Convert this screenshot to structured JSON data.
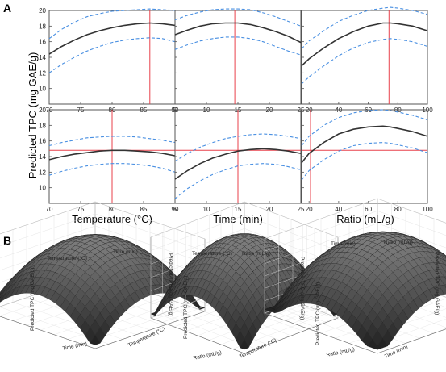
{
  "panels": {
    "a_label": "A",
    "b_label": "B"
  },
  "panel_a": {
    "ylabel": "Predicted TPC (mg GAE/g)",
    "xlabels": [
      "Temperature (°C)",
      "Time (min)",
      "Ratio (mL/g)"
    ],
    "yticks": [
      10,
      12,
      14,
      16,
      18,
      20
    ],
    "xticks": [
      [
        "70",
        "75",
        "80",
        "85",
        "90"
      ],
      [
        "5",
        "10",
        "15",
        "20",
        "25"
      ],
      [
        "20",
        "40",
        "60",
        "80",
        "100"
      ]
    ]
  },
  "panel_b": {
    "surfaces": [
      {
        "top_left_label": "Temperature (°C)",
        "top_right_label": "Time (min)",
        "bottom_left_label": "Time (min)",
        "bottom_right_label": "Temperature (°C)",
        "zlabel": "Predicted TPC (mg GAE/g)"
      },
      {
        "top_left_label": "Temperature (°C)",
        "top_right_label": "Ratio (mL/g)",
        "bottom_left_label": "Ratio (mL/g)",
        "bottom_right_label": "Temperature (°C)",
        "zlabel": "Predicted TPC (mg GAE/g)"
      },
      {
        "top_left_label": "Time (min)",
        "top_right_label": "Ratio (mL/g)",
        "bottom_left_label": "Ratio (mL/g)",
        "bottom_right_label": "Time (min)",
        "zlabel": "Predicted TPC (mg GAE/g)"
      }
    ]
  },
  "colors": {
    "fit": "#333333",
    "ci": "#4a90e2",
    "ref": "#e8414b",
    "surface": "#2a2a2a"
  },
  "chart_data": [
    {
      "type": "line",
      "xlabel": "Temperature (°C)",
      "ylabel": "Predicted TPC (mg GAE/g)",
      "xlim": [
        70,
        90
      ],
      "ylim": [
        8,
        20
      ],
      "x": [
        70,
        72,
        74,
        76,
        78,
        80,
        82,
        84,
        86,
        88,
        90
      ],
      "series": [
        {
          "values": [
            14.4,
            15.4,
            16.2,
            16.9,
            17.4,
            17.8,
            18.1,
            18.3,
            18.4,
            18.3,
            18.1
          ]
        }
      ],
      "ci_lower": [
        12.0,
        13.1,
        14.0,
        14.8,
        15.4,
        15.9,
        16.2,
        16.4,
        16.5,
        16.4,
        16.0
      ],
      "ci_upper": [
        16.4,
        17.6,
        18.5,
        19.2,
        19.6,
        19.9,
        20.0,
        20.1,
        20.2,
        20.1,
        20.0
      ],
      "ref_x": 86,
      "ref_y": 18.4
    },
    {
      "type": "line",
      "xlabel": "Time (min)",
      "ylabel": "Predicted TPC (mg GAE/g)",
      "xlim": [
        5,
        25
      ],
      "ylim": [
        8,
        20
      ],
      "x": [
        5,
        7,
        9,
        11,
        13,
        15,
        17,
        19,
        21,
        23,
        25
      ],
      "series": [
        {
          "values": [
            16.9,
            17.5,
            18.0,
            18.3,
            18.4,
            18.4,
            18.2,
            17.8,
            17.3,
            16.7,
            15.9
          ]
        }
      ],
      "ci_lower": [
        15.0,
        15.6,
        16.1,
        16.4,
        16.6,
        16.6,
        16.4,
        16.0,
        15.4,
        14.8,
        14.3
      ],
      "ci_upper": [
        18.8,
        19.4,
        19.8,
        20.1,
        20.2,
        20.2,
        20.1,
        19.7,
        19.2,
        18.6,
        18.0
      ],
      "ref_x": 14.5,
      "ref_y": 18.4
    },
    {
      "type": "line",
      "xlabel": "Ratio (mL/g)",
      "ylabel": "Predicted TPC (mg GAE/g)",
      "xlim": [
        15,
        100
      ],
      "ylim": [
        8,
        20
      ],
      "x": [
        15,
        20,
        30,
        40,
        50,
        60,
        70,
        75,
        80,
        90,
        100
      ],
      "series": [
        {
          "values": [
            12.9,
            13.8,
            15.2,
            16.4,
            17.3,
            18.0,
            18.4,
            18.4,
            18.3,
            18.0,
            17.4
          ]
        }
      ],
      "ci_lower": [
        10.6,
        11.5,
        12.9,
        14.2,
        15.2,
        15.9,
        16.3,
        16.4,
        16.3,
        16.0,
        15.4
      ],
      "ci_upper": [
        15.1,
        16.1,
        17.4,
        18.6,
        19.4,
        20.0,
        20.3,
        20.4,
        20.3,
        20.0,
        19.5
      ],
      "ref_x": 74,
      "ref_y": 18.4
    },
    {
      "type": "line",
      "xlabel": "Temperature (°C)",
      "ylabel": "Predicted TPC (mg GAE/g)",
      "xlim": [
        70,
        90
      ],
      "ylim": [
        8,
        20
      ],
      "x": [
        70,
        72,
        74,
        76,
        78,
        80,
        82,
        84,
        86,
        88,
        90
      ],
      "series": [
        {
          "values": [
            13.6,
            14.0,
            14.3,
            14.5,
            14.7,
            14.8,
            14.8,
            14.7,
            14.6,
            14.4,
            14.1
          ]
        }
      ],
      "ci_lower": [
        11.6,
        12.1,
        12.5,
        12.8,
        13.0,
        13.1,
        13.1,
        13.0,
        12.8,
        12.5,
        12.0
      ],
      "ci_upper": [
        15.4,
        15.8,
        16.1,
        16.4,
        16.5,
        16.6,
        16.6,
        16.5,
        16.3,
        16.1,
        15.8
      ],
      "ref_x": 80,
      "ref_y": 14.8
    },
    {
      "type": "line",
      "xlabel": "Time (min)",
      "ylabel": "Predicted TPC (mg GAE/g)",
      "xlim": [
        5,
        25
      ],
      "ylim": [
        8,
        20
      ],
      "x": [
        5,
        7,
        9,
        11,
        13,
        15,
        17,
        19,
        21,
        23,
        25
      ],
      "series": [
        {
          "values": [
            11.1,
            12.2,
            13.1,
            13.8,
            14.3,
            14.7,
            14.9,
            15.0,
            14.9,
            14.7,
            14.4
          ]
        }
      ],
      "ci_lower": [
        8.6,
        9.9,
        10.9,
        11.7,
        12.3,
        12.8,
        13.0,
        13.1,
        13.0,
        12.7,
        12.3
      ],
      "ci_upper": [
        13.4,
        14.4,
        15.2,
        15.8,
        16.3,
        16.6,
        16.8,
        16.9,
        16.8,
        16.6,
        16.3
      ],
      "ref_x": 15,
      "ref_y": 14.8
    },
    {
      "type": "line",
      "xlabel": "Ratio (mL/g)",
      "ylabel": "Predicted TPC (mg GAE/g)",
      "xlim": [
        15,
        100
      ],
      "ylim": [
        8,
        20
      ],
      "x": [
        15,
        20,
        30,
        40,
        50,
        60,
        70,
        75,
        80,
        90,
        100
      ],
      "series": [
        {
          "values": [
            13.2,
            14.4,
            15.8,
            16.9,
            17.5,
            17.8,
            17.9,
            17.8,
            17.6,
            17.2,
            16.6
          ]
        }
      ],
      "ci_lower": [
        11.0,
        12.2,
        13.6,
        14.7,
        15.4,
        15.7,
        15.8,
        15.7,
        15.5,
        15.1,
        14.5
      ],
      "ci_upper": [
        15.4,
        16.6,
        18.0,
        19.0,
        19.6,
        19.9,
        20.0,
        19.9,
        19.7,
        19.3,
        18.7
      ],
      "ref_x": 21,
      "ref_y": 14.8
    },
    {
      "type": "surface",
      "x_label": "Temperature (°C)",
      "y_label": "Time (min)",
      "z_label": "Predicted TPC (mg GAE/g)"
    },
    {
      "type": "surface",
      "x_label": "Temperature (°C)",
      "y_label": "Ratio (mL/g)",
      "z_label": "Predicted TPC (mg GAE/g)"
    },
    {
      "type": "surface",
      "x_label": "Time (min)",
      "y_label": "Ratio (mL/g)",
      "z_label": "Predicted TPC (mg GAE/g)"
    }
  ]
}
